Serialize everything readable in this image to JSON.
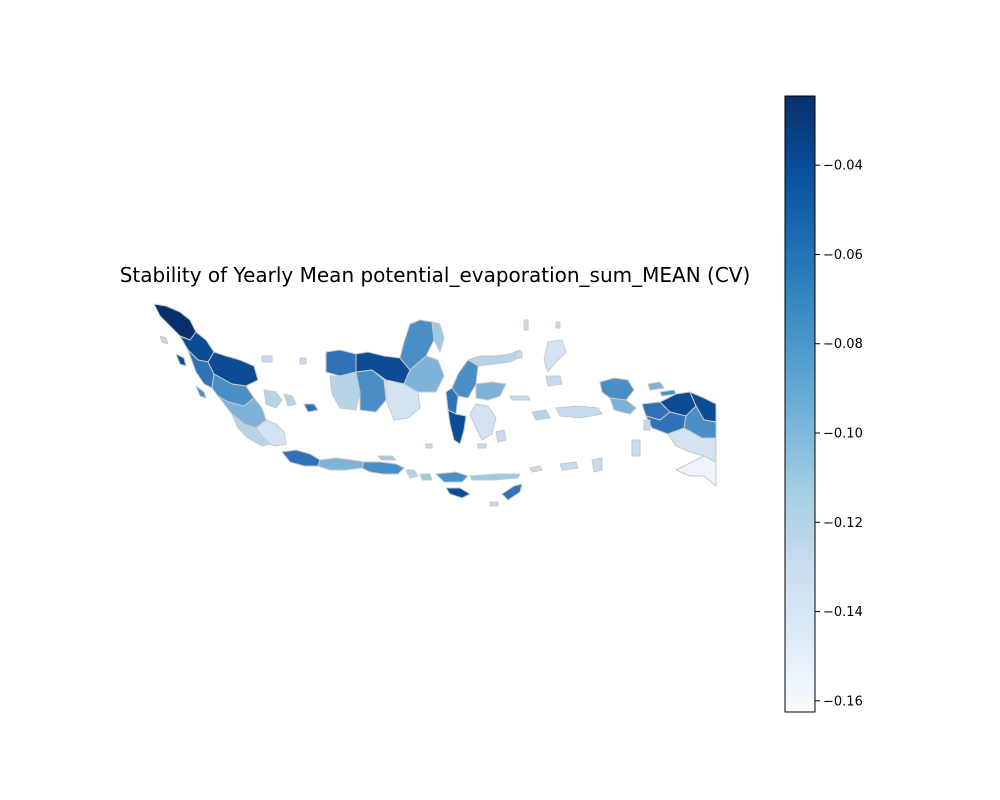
{
  "title": "Stability of Yearly Mean potential_evaporation_sum_MEAN (CV)",
  "colorbar": {
    "colormap": "Blues",
    "vmin": -0.1625,
    "vmax": -0.0245,
    "ticks": [
      {
        "value": -0.04,
        "label": "−0.04"
      },
      {
        "value": -0.06,
        "label": "−0.06"
      },
      {
        "value": -0.08,
        "label": "−0.08"
      },
      {
        "value": -0.1,
        "label": "−0.10"
      },
      {
        "value": -0.12,
        "label": "−0.12"
      },
      {
        "value": -0.14,
        "label": "−0.14"
      },
      {
        "value": -0.16,
        "label": "−0.16"
      }
    ],
    "gradient_stops": [
      "#f7fbff",
      "#deebf7",
      "#c6dbef",
      "#9ecae1",
      "#6baed6",
      "#4292c6",
      "#2171b5",
      "#08519c",
      "#08306b"
    ]
  },
  "map": {
    "region": "Indonesia",
    "border_color": "#c8c8c8",
    "fill_colors": {
      "very_dark": "#08306b",
      "dark": "#0c4c94",
      "mid_dark": "#2f72b8",
      "mid": "#4a8ec6",
      "light_mid": "#7fb2d9",
      "light": "#b6d3e8",
      "lighter": "#d3e3f2",
      "palest": "#eef5fc"
    }
  }
}
